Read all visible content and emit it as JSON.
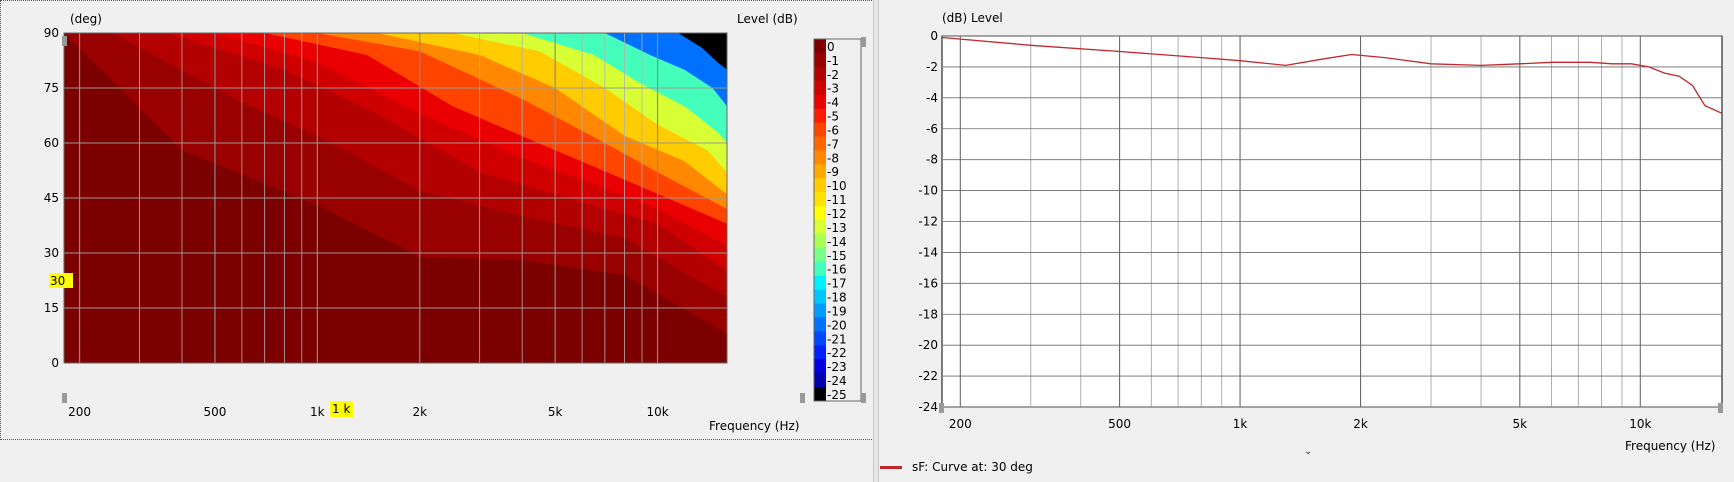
{
  "left_chart": {
    "y_unit": "(deg)",
    "level_label": "Level  (dB)",
    "x_label": "Frequency  (Hz)",
    "cursor_x_label": "1 k",
    "cursor_y_label": "30",
    "colorbar_colors": [
      "#7d0000",
      "#990000",
      "#b30000",
      "#d00000",
      "#ea0000",
      "#ff1a00",
      "#ff4400",
      "#ff6600",
      "#ff8800",
      "#ffaa00",
      "#ffcc00",
      "#ffe100",
      "#ffff00",
      "#d8ff33",
      "#aaff55",
      "#77ff88",
      "#44ffbb",
      "#00f0ff",
      "#00c6ff",
      "#009cff",
      "#0070ff",
      "#0048ff",
      "#0020ff",
      "#0000e0",
      "#0000b0",
      "#000000"
    ]
  },
  "right_chart": {
    "y_unit": "(dB)  Level",
    "x_label": "Frequency  (Hz)"
  },
  "legend": {
    "label": "sF: Curve at: 30 deg",
    "color": "#c0282d"
  },
  "chart_data": [
    {
      "type": "heatmap",
      "title": "",
      "xlabel": "Frequency (Hz)",
      "ylabel": "(deg)",
      "xscale": "log",
      "xlim": [
        180,
        16000
      ],
      "ylim": [
        0,
        90
      ],
      "x_ticks": [
        200,
        500,
        1000,
        2000,
        5000,
        10000
      ],
      "x_tick_labels": [
        "200",
        "500",
        "1k",
        "2k",
        "5k",
        "10k"
      ],
      "y_ticks": [
        0,
        15,
        30,
        45,
        60,
        75,
        90
      ],
      "colorbar_label": "Level (dB)",
      "colorbar_levels": [
        0,
        -1,
        -2,
        -3,
        -4,
        -5,
        -6,
        -7,
        -8,
        -9,
        -10,
        -11,
        -12,
        -13,
        -14,
        -15,
        -16,
        -17,
        -18,
        -19,
        -20,
        -21,
        -22,
        -23,
        -24,
        -25
      ],
      "contour_boundaries_deg": [
        {
          "level": -1,
          "freq": [
            180,
            400,
            1000,
            2000,
            4000,
            8000,
            16000
          ],
          "deg": [
            90,
            58,
            43,
            29,
            28,
            24,
            8
          ]
        },
        {
          "level": -2,
          "freq": [
            250,
            600,
            1000,
            2000,
            4000,
            8000,
            16000
          ],
          "deg": [
            90,
            71,
            62,
            47,
            40,
            34,
            18
          ]
        },
        {
          "level": -3,
          "freq": [
            360,
            800,
            1500,
            3000,
            5000,
            10000,
            16000
          ],
          "deg": [
            90,
            80,
            68,
            52,
            46,
            38,
            25
          ]
        },
        {
          "level": -4,
          "freq": [
            500,
            1000,
            2000,
            4000,
            6000,
            10000,
            16000
          ],
          "deg": [
            90,
            82,
            68,
            56,
            50,
            42,
            32
          ]
        },
        {
          "level": -6,
          "freq": [
            700,
            1400,
            2500,
            5000,
            8000,
            16000
          ],
          "deg": [
            90,
            84,
            70,
            58,
            50,
            38
          ]
        },
        {
          "level": -8,
          "freq": [
            1000,
            2000,
            4000,
            7000,
            10000,
            16000
          ],
          "deg": [
            90,
            85,
            72,
            60,
            52,
            42
          ]
        },
        {
          "level": -10,
          "freq": [
            1500,
            3000,
            5000,
            8000,
            12000,
            16000
          ],
          "deg": [
            90,
            84,
            75,
            62,
            55,
            46
          ]
        },
        {
          "level": -13,
          "freq": [
            2500,
            4500,
            7000,
            10000,
            14000,
            16000
          ],
          "deg": [
            90,
            85,
            75,
            65,
            58,
            52
          ]
        },
        {
          "level": -16,
          "freq": [
            4000,
            6500,
            9000,
            12000,
            15000,
            16000
          ],
          "deg": [
            90,
            84,
            76,
            70,
            63,
            60
          ]
        },
        {
          "level": -20,
          "freq": [
            7000,
            9500,
            12000,
            14500,
            16000
          ],
          "deg": [
            90,
            84,
            80,
            75,
            70
          ]
        },
        {
          "level": -25,
          "freq": [
            11500,
            13500,
            15000,
            16000
          ],
          "deg": [
            90,
            86,
            82,
            80
          ]
        }
      ]
    },
    {
      "type": "line",
      "title": "",
      "xlabel": "Frequency (Hz)",
      "ylabel": "Level (dB)",
      "xscale": "log",
      "xlim": [
        180,
        16000
      ],
      "ylim": [
        -24,
        0
      ],
      "x_ticks": [
        200,
        500,
        1000,
        2000,
        5000,
        10000
      ],
      "x_tick_labels": [
        "200",
        "500",
        "1k",
        "2k",
        "5k",
        "10k"
      ],
      "y_ticks": [
        0,
        -2,
        -4,
        -6,
        -8,
        -10,
        -12,
        -14,
        -16,
        -18,
        -20,
        -22,
        -24
      ],
      "grid": true,
      "series": [
        {
          "name": "sF: Curve at: 30 deg",
          "color": "#c0282d",
          "x": [
            180,
            300,
            500,
            800,
            1000,
            1300,
            1600,
            1900,
            2300,
            3000,
            4000,
            5000,
            6000,
            7500,
            8500,
            9500,
            10500,
            11500,
            12500,
            13500,
            14500,
            16000
          ],
          "y": [
            -0.1,
            -0.6,
            -1.0,
            -1.4,
            -1.6,
            -1.9,
            -1.5,
            -1.2,
            -1.4,
            -1.8,
            -1.9,
            -1.8,
            -1.7,
            -1.7,
            -1.8,
            -1.8,
            -2.0,
            -2.4,
            -2.6,
            -3.2,
            -4.5,
            -5.0
          ]
        }
      ]
    }
  ]
}
